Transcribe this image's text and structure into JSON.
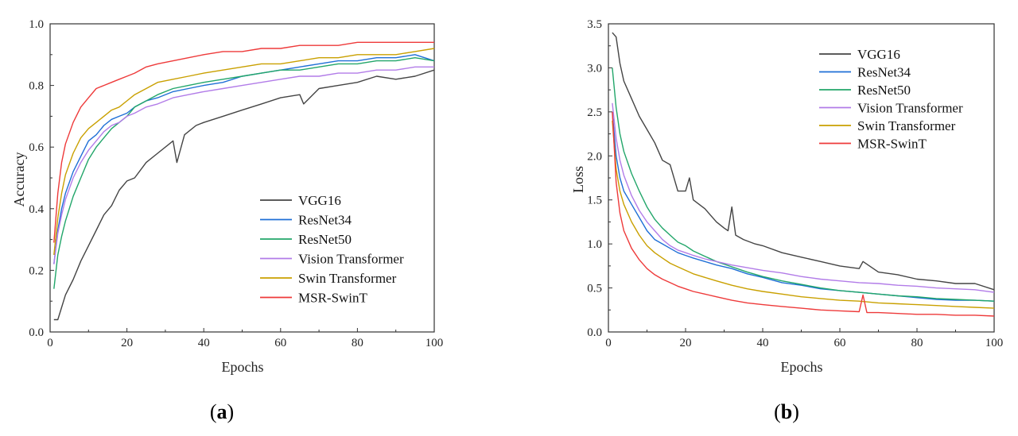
{
  "figure": {
    "captions": [
      "(a)",
      "(b)"
    ],
    "caption_letters": [
      "a",
      "b"
    ]
  },
  "colors": {
    "VGG16": "#444444",
    "ResNet34": "#1f6fd6",
    "ResNet50": "#22a66a",
    "Vision Transformer": "#b27ce8",
    "Swin Transformer": "#c9a000",
    "MSR-SwinT": "#ee3a3a"
  },
  "chart_data": [
    {
      "type": "line",
      "title": "",
      "xlabel": "Epochs",
      "ylabel": "Accuracy",
      "xlim": [
        0,
        100
      ],
      "ylim": [
        0.0,
        1.0
      ],
      "xticks": [
        "0",
        "20",
        "40",
        "60",
        "80",
        "100"
      ],
      "yticks": [
        "0.0",
        "0.2",
        "0.4",
        "0.6",
        "0.8",
        "1.0"
      ],
      "legend_position": "center-right",
      "series": [
        {
          "name": "VGG16",
          "x": [
            1,
            2,
            3,
            4,
            6,
            8,
            10,
            12,
            14,
            16,
            18,
            20,
            22,
            25,
            28,
            32,
            33,
            35,
            38,
            40,
            45,
            50,
            55,
            60,
            65,
            66,
            70,
            75,
            80,
            85,
            90,
            95,
            100
          ],
          "values": [
            0.04,
            0.04,
            0.08,
            0.12,
            0.17,
            0.23,
            0.28,
            0.33,
            0.38,
            0.41,
            0.46,
            0.49,
            0.5,
            0.55,
            0.58,
            0.62,
            0.55,
            0.64,
            0.67,
            0.68,
            0.7,
            0.72,
            0.74,
            0.76,
            0.77,
            0.74,
            0.79,
            0.8,
            0.81,
            0.83,
            0.82,
            0.83,
            0.85
          ]
        },
        {
          "name": "ResNet34",
          "x": [
            1,
            2,
            3,
            4,
            6,
            8,
            10,
            12,
            14,
            16,
            18,
            20,
            22,
            25,
            28,
            32,
            36,
            40,
            45,
            50,
            55,
            60,
            65,
            70,
            75,
            80,
            85,
            90,
            95,
            100
          ],
          "values": [
            0.22,
            0.33,
            0.4,
            0.45,
            0.52,
            0.57,
            0.62,
            0.64,
            0.67,
            0.69,
            0.7,
            0.71,
            0.73,
            0.75,
            0.76,
            0.78,
            0.79,
            0.8,
            0.81,
            0.83,
            0.84,
            0.85,
            0.86,
            0.87,
            0.88,
            0.88,
            0.89,
            0.89,
            0.9,
            0.88
          ]
        },
        {
          "name": "ResNet50",
          "x": [
            1,
            2,
            3,
            4,
            6,
            8,
            10,
            12,
            14,
            16,
            18,
            20,
            22,
            25,
            28,
            32,
            36,
            40,
            45,
            50,
            55,
            60,
            65,
            70,
            75,
            80,
            85,
            90,
            95,
            100
          ],
          "values": [
            0.14,
            0.25,
            0.31,
            0.36,
            0.44,
            0.5,
            0.56,
            0.6,
            0.63,
            0.66,
            0.68,
            0.7,
            0.73,
            0.75,
            0.77,
            0.79,
            0.8,
            0.81,
            0.82,
            0.83,
            0.84,
            0.85,
            0.85,
            0.86,
            0.87,
            0.87,
            0.88,
            0.88,
            0.89,
            0.88
          ]
        },
        {
          "name": "Vision Transformer",
          "x": [
            1,
            2,
            3,
            4,
            6,
            8,
            10,
            12,
            14,
            16,
            18,
            20,
            22,
            25,
            28,
            32,
            36,
            40,
            45,
            50,
            55,
            60,
            65,
            70,
            75,
            80,
            85,
            90,
            95,
            100
          ],
          "values": [
            0.22,
            0.32,
            0.38,
            0.43,
            0.5,
            0.55,
            0.59,
            0.62,
            0.65,
            0.67,
            0.68,
            0.7,
            0.71,
            0.73,
            0.74,
            0.76,
            0.77,
            0.78,
            0.79,
            0.8,
            0.81,
            0.82,
            0.83,
            0.83,
            0.84,
            0.84,
            0.85,
            0.85,
            0.86,
            0.86
          ]
        },
        {
          "name": "Swin Transformer",
          "x": [
            1,
            2,
            3,
            4,
            6,
            8,
            10,
            12,
            14,
            16,
            18,
            20,
            22,
            25,
            28,
            32,
            36,
            40,
            45,
            50,
            55,
            60,
            65,
            70,
            75,
            80,
            85,
            90,
            95,
            100
          ],
          "values": [
            0.25,
            0.37,
            0.45,
            0.51,
            0.58,
            0.63,
            0.66,
            0.68,
            0.7,
            0.72,
            0.73,
            0.75,
            0.77,
            0.79,
            0.81,
            0.82,
            0.83,
            0.84,
            0.85,
            0.86,
            0.87,
            0.87,
            0.88,
            0.89,
            0.89,
            0.9,
            0.9,
            0.9,
            0.91,
            0.92
          ]
        },
        {
          "name": "MSR-SwinT",
          "x": [
            1,
            2,
            3,
            4,
            6,
            8,
            10,
            12,
            14,
            16,
            18,
            20,
            22,
            25,
            28,
            32,
            36,
            40,
            45,
            50,
            55,
            60,
            65,
            70,
            75,
            80,
            85,
            90,
            95,
            100
          ],
          "values": [
            0.29,
            0.45,
            0.55,
            0.61,
            0.68,
            0.73,
            0.76,
            0.79,
            0.8,
            0.81,
            0.82,
            0.83,
            0.84,
            0.86,
            0.87,
            0.88,
            0.89,
            0.9,
            0.91,
            0.91,
            0.92,
            0.92,
            0.93,
            0.93,
            0.93,
            0.94,
            0.94,
            0.94,
            0.94,
            0.94
          ]
        }
      ]
    },
    {
      "type": "line",
      "title": "",
      "xlabel": "Epochs",
      "ylabel": "Loss",
      "xlim": [
        0,
        100
      ],
      "ylim": [
        0.0,
        3.5
      ],
      "xticks": [
        "0",
        "20",
        "40",
        "60",
        "80",
        "100"
      ],
      "yticks": [
        "0.0",
        "0.5",
        "1.0",
        "1.5",
        "2.0",
        "2.5",
        "3.0",
        "3.5"
      ],
      "legend_position": "top-right",
      "series": [
        {
          "name": "VGG16",
          "x": [
            1,
            2,
            3,
            4,
            6,
            8,
            10,
            12,
            14,
            16,
            18,
            20,
            21,
            22,
            25,
            28,
            30,
            31,
            32,
            33,
            35,
            38,
            40,
            45,
            50,
            55,
            60,
            65,
            66,
            70,
            75,
            80,
            85,
            90,
            95,
            100
          ],
          "values": [
            3.4,
            3.35,
            3.05,
            2.85,
            2.65,
            2.45,
            2.3,
            2.15,
            1.95,
            1.9,
            1.6,
            1.6,
            1.75,
            1.5,
            1.4,
            1.25,
            1.18,
            1.15,
            1.42,
            1.1,
            1.05,
            1.0,
            0.98,
            0.9,
            0.85,
            0.8,
            0.75,
            0.72,
            0.8,
            0.68,
            0.65,
            0.6,
            0.58,
            0.55,
            0.55,
            0.48
          ]
        },
        {
          "name": "ResNet34",
          "x": [
            1,
            2,
            3,
            4,
            6,
            8,
            10,
            12,
            14,
            16,
            18,
            20,
            22,
            25,
            28,
            32,
            36,
            40,
            45,
            50,
            55,
            60,
            65,
            70,
            75,
            80,
            85,
            90,
            95,
            100
          ],
          "values": [
            2.5,
            2.0,
            1.75,
            1.6,
            1.45,
            1.3,
            1.15,
            1.05,
            1.0,
            0.95,
            0.9,
            0.87,
            0.84,
            0.8,
            0.76,
            0.72,
            0.66,
            0.62,
            0.56,
            0.53,
            0.49,
            0.47,
            0.45,
            0.43,
            0.41,
            0.39,
            0.37,
            0.36,
            0.36,
            0.35
          ]
        },
        {
          "name": "ResNet50",
          "x": [
            1,
            2,
            3,
            4,
            6,
            8,
            10,
            12,
            14,
            16,
            18,
            20,
            22,
            25,
            28,
            32,
            36,
            40,
            45,
            50,
            55,
            60,
            65,
            70,
            75,
            80,
            85,
            90,
            95,
            100
          ],
          "values": [
            3.0,
            2.55,
            2.25,
            2.05,
            1.8,
            1.6,
            1.42,
            1.28,
            1.18,
            1.1,
            1.02,
            0.98,
            0.92,
            0.86,
            0.8,
            0.74,
            0.68,
            0.63,
            0.58,
            0.54,
            0.5,
            0.47,
            0.45,
            0.43,
            0.41,
            0.4,
            0.38,
            0.37,
            0.36,
            0.35
          ]
        },
        {
          "name": "Vision Transformer",
          "x": [
            1,
            2,
            3,
            4,
            6,
            8,
            10,
            12,
            14,
            16,
            18,
            20,
            22,
            25,
            28,
            32,
            36,
            40,
            45,
            50,
            55,
            60,
            65,
            70,
            75,
            80,
            85,
            90,
            95,
            100
          ],
          "values": [
            2.6,
            2.2,
            1.95,
            1.78,
            1.55,
            1.38,
            1.25,
            1.15,
            1.05,
            0.98,
            0.93,
            0.9,
            0.87,
            0.83,
            0.8,
            0.76,
            0.73,
            0.7,
            0.67,
            0.63,
            0.6,
            0.58,
            0.56,
            0.55,
            0.53,
            0.52,
            0.5,
            0.49,
            0.48,
            0.45
          ]
        },
        {
          "name": "Swin Transformer",
          "x": [
            1,
            2,
            3,
            4,
            6,
            8,
            10,
            12,
            14,
            16,
            18,
            20,
            22,
            25,
            28,
            32,
            36,
            40,
            45,
            50,
            55,
            60,
            65,
            70,
            75,
            80,
            85,
            90,
            95,
            100
          ],
          "values": [
            2.4,
            1.85,
            1.6,
            1.45,
            1.25,
            1.1,
            0.98,
            0.9,
            0.84,
            0.78,
            0.74,
            0.7,
            0.66,
            0.62,
            0.58,
            0.53,
            0.49,
            0.46,
            0.43,
            0.4,
            0.38,
            0.36,
            0.35,
            0.33,
            0.32,
            0.31,
            0.3,
            0.29,
            0.28,
            0.27
          ]
        },
        {
          "name": "MSR-SwinT",
          "x": [
            1,
            2,
            3,
            4,
            6,
            8,
            10,
            12,
            14,
            16,
            18,
            20,
            22,
            25,
            28,
            32,
            36,
            40,
            45,
            50,
            55,
            60,
            65,
            66,
            67,
            70,
            75,
            80,
            85,
            90,
            95,
            100
          ],
          "values": [
            2.5,
            1.7,
            1.35,
            1.15,
            0.95,
            0.82,
            0.72,
            0.65,
            0.6,
            0.56,
            0.52,
            0.49,
            0.46,
            0.43,
            0.4,
            0.36,
            0.33,
            0.31,
            0.29,
            0.27,
            0.25,
            0.24,
            0.23,
            0.42,
            0.22,
            0.22,
            0.21,
            0.2,
            0.2,
            0.19,
            0.19,
            0.18
          ]
        }
      ]
    }
  ]
}
